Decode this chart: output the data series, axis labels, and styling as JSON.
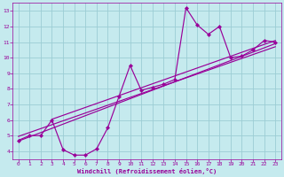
{
  "xlabel": "Windchill (Refroidissement éolien,°C)",
  "bg_color": "#c5eaee",
  "grid_color": "#9ccdd4",
  "line_color": "#990099",
  "xlim": [
    -0.5,
    23.5
  ],
  "ylim": [
    3.5,
    13.5
  ],
  "xticks": [
    0,
    1,
    2,
    3,
    4,
    5,
    6,
    7,
    8,
    9,
    10,
    11,
    12,
    13,
    14,
    15,
    16,
    17,
    18,
    19,
    20,
    21,
    22,
    23
  ],
  "yticks": [
    4,
    5,
    6,
    7,
    8,
    9,
    10,
    11,
    12,
    13
  ],
  "data_x": [
    0,
    1,
    2,
    3,
    4,
    5,
    6,
    7,
    8,
    9,
    10,
    11,
    12,
    13,
    14,
    15,
    16,
    17,
    18,
    19,
    20,
    21,
    22,
    23
  ],
  "data_y": [
    4.7,
    5.0,
    5.0,
    6.0,
    4.1,
    3.75,
    3.75,
    4.15,
    5.5,
    7.5,
    9.5,
    7.9,
    8.1,
    8.3,
    8.6,
    13.2,
    12.1,
    11.5,
    12.0,
    10.0,
    10.1,
    10.5,
    11.1,
    11.0
  ],
  "trend1": [
    0,
    4.65,
    23,
    10.9
  ],
  "trend2": [
    0,
    4.95,
    23,
    10.7
  ],
  "trend3": [
    3,
    6.05,
    23,
    11.1
  ]
}
